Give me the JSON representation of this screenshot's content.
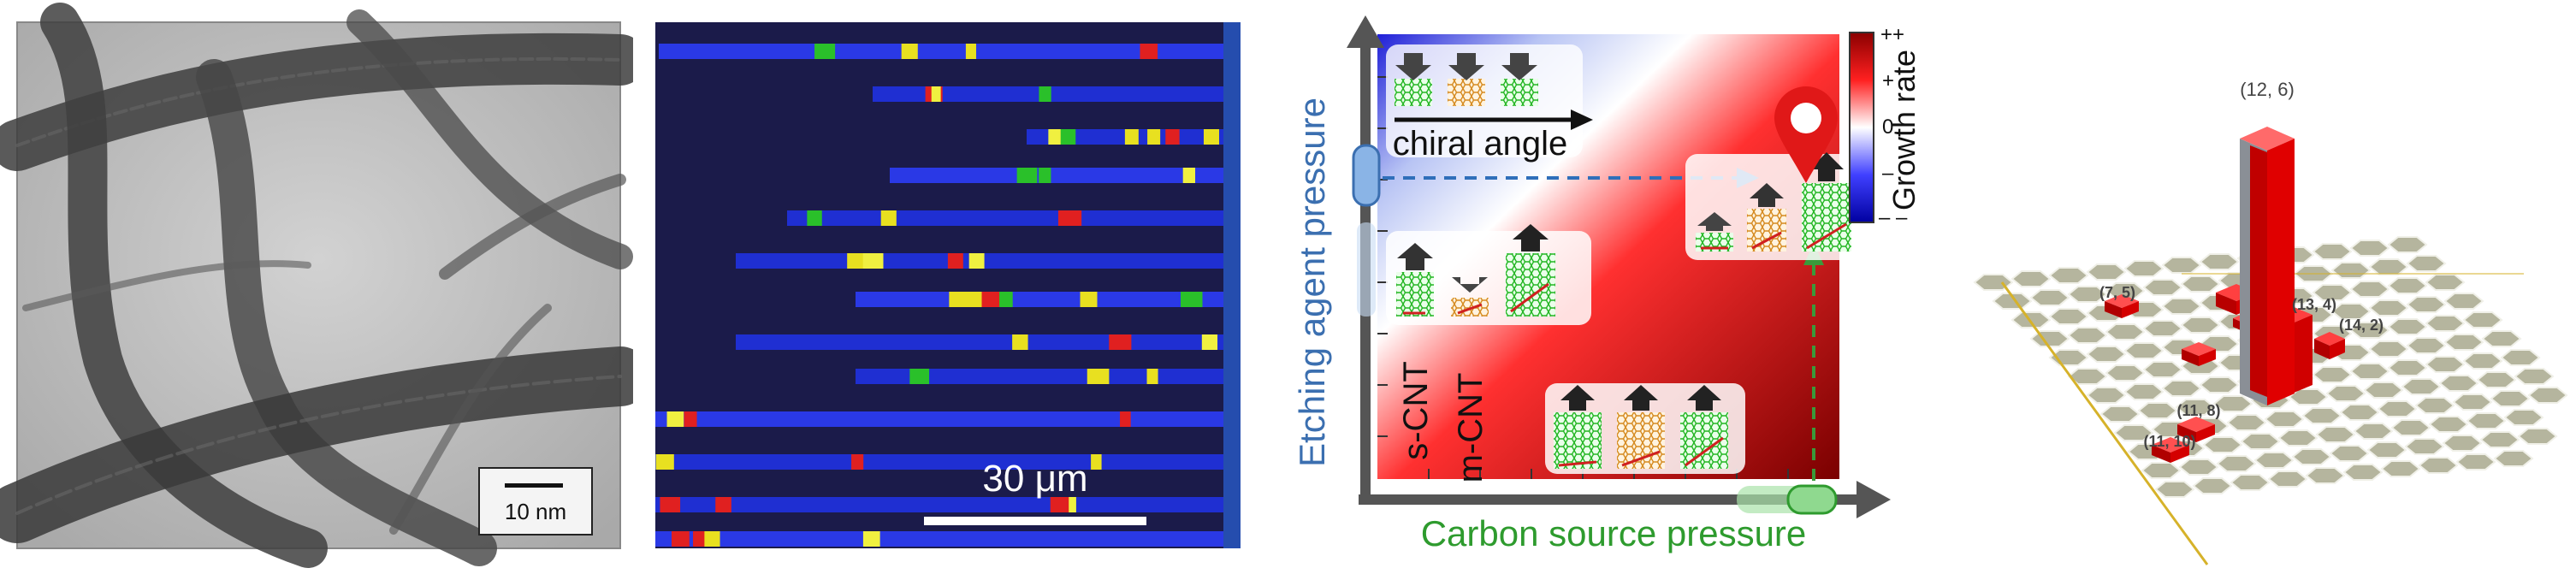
{
  "panels": {
    "tem": {
      "scalebar_label": "10 nm"
    },
    "raman": {
      "scalebar_label": "30 μm"
    },
    "diagram": {
      "y_axis_label": "Etching agent pressure",
      "x_axis_label": "Carbon source pressure",
      "chiral_angle_label": "chiral angle",
      "scnt_label": "s-CNT",
      "mcnt_label": "m-CNT",
      "colorbar_title": "Growth rate",
      "colorbar_ticks": [
        "++",
        "+",
        "0",
        "–",
        "– –"
      ],
      "colors": {
        "x_axis_accent": "#2e9b2e",
        "y_axis_accent": "#3b6fb0",
        "high": "#c00000",
        "low": "#1a1ae0"
      }
    },
    "histogram": {
      "labels": {
        "a": "(12, 6)",
        "b": "(7, 5)",
        "c": "(13, 4)",
        "d": "(14, 2)",
        "e": "(11, 8)",
        "f": "(11, 10)"
      }
    }
  }
}
